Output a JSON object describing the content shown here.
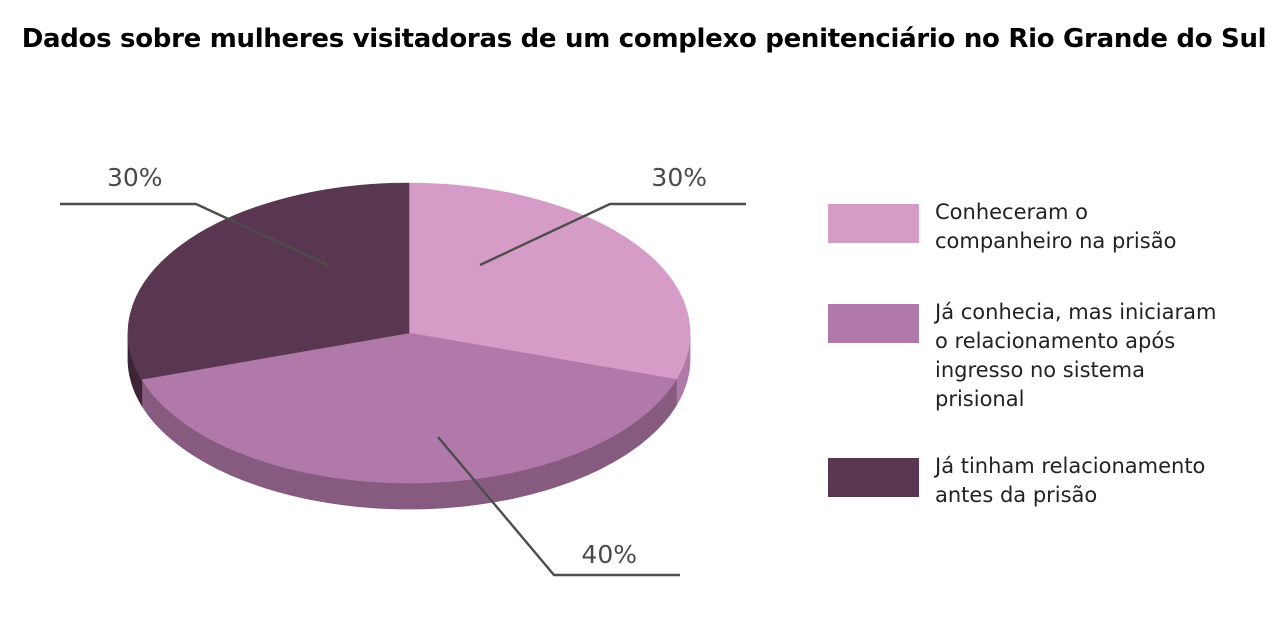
{
  "chart_data": {
    "type": "pie",
    "title": "Dados sobre mulheres visitadoras de um complexo penitenciário no Rio Grande do Sul",
    "slices": [
      {
        "label": "Conheceram o companheiro na prisão",
        "value": 30,
        "value_label": "30%",
        "color": "#d59cc7",
        "side_color": "#b07aa8"
      },
      {
        "label": "Já conhecia, mas iniciaram o relacionamento após ingresso no sistema prisional",
        "value": 40,
        "value_label": "40%",
        "color": "#b179a9",
        "side_color": "#875a80"
      },
      {
        "label": "Já tinham relacionamento antes da prisão",
        "value": 30,
        "value_label": "30%",
        "color": "#5a3750",
        "side_color": "#3d2436"
      }
    ],
    "legend_position": "right",
    "style": "3d"
  },
  "legend": {
    "items": [
      {
        "label_lines": [
          "Conheceram o",
          "companheiro na prisão"
        ]
      },
      {
        "label_lines": [
          "Já conhecia, mas iniciaram",
          "o relacionamento após",
          "ingresso no sistema",
          "prisional"
        ]
      },
      {
        "label_lines": [
          "Já tinham relacionamento",
          "antes da prisão"
        ]
      }
    ]
  }
}
